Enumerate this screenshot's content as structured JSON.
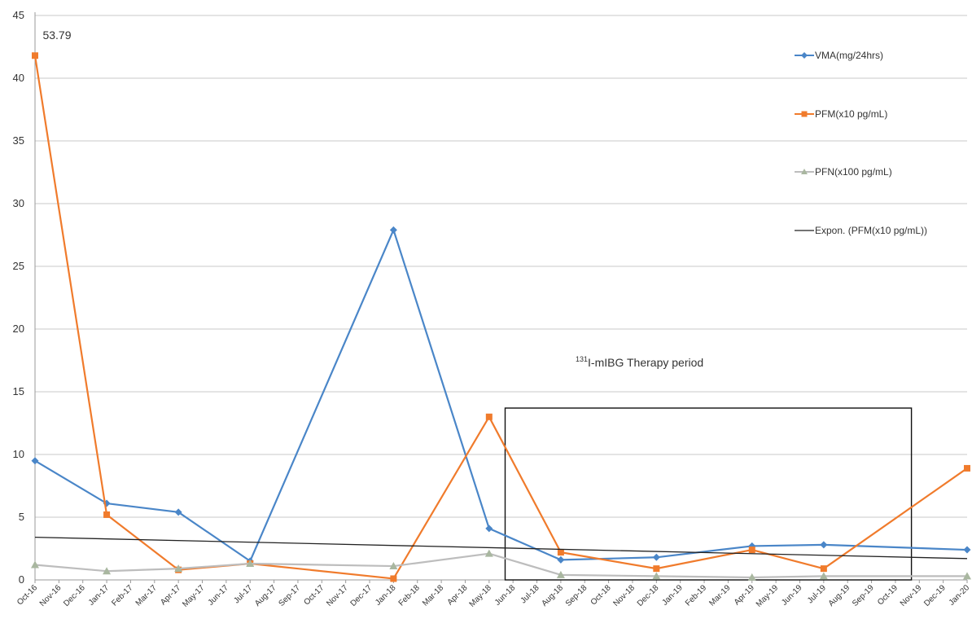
{
  "chart_data": {
    "type": "line",
    "categories": [
      "Oct-16",
      "Nov-16",
      "Dec-16",
      "Jan-17",
      "Feb-17",
      "Mar-17",
      "Apr-17",
      "May-17",
      "Jun-17",
      "Jul-17",
      "Aug-17",
      "Sep-17",
      "Oct-17",
      "Nov-17",
      "Dec-17",
      "Jan-18",
      "Feb-18",
      "Mar-18",
      "Apr-18",
      "May-18",
      "Jun-18",
      "Jul-18",
      "Aug-18",
      "Sep-18",
      "Oct-18",
      "Nov-18",
      "Dec-18",
      "Jan-19",
      "Feb-19",
      "Mar-19",
      "Apr-19",
      "May-19",
      "Jun-19",
      "Jul-19",
      "Aug-19",
      "Sep-19",
      "Oct-19",
      "Nov-19",
      "Dec-19",
      "Jan-20"
    ],
    "ylim": [
      0,
      45
    ],
    "yticks": [
      "0",
      "5",
      "10",
      "15",
      "20",
      "25",
      "30",
      "35",
      "40",
      "45"
    ],
    "grid": true,
    "legend_position": "right",
    "series": [
      {
        "name": "VMA(mg/24hrs)",
        "color": "#4a86c8",
        "marker": "diamond",
        "points": [
          {
            "x": "Oct-16",
            "y": 9.5
          },
          {
            "x": "Jan-17",
            "y": 6.1
          },
          {
            "x": "Apr-17",
            "y": 5.4
          },
          {
            "x": "Jul-17",
            "y": 1.5
          },
          {
            "x": "Jan-18",
            "y": 27.9
          },
          {
            "x": "May-18",
            "y": 4.1
          },
          {
            "x": "Aug-18",
            "y": 1.6
          },
          {
            "x": "Dec-18",
            "y": 1.8
          },
          {
            "x": "Apr-19",
            "y": 2.7
          },
          {
            "x": "Jul-19",
            "y": 2.8
          },
          {
            "x": "Jan-20",
            "y": 2.4
          }
        ]
      },
      {
        "name": "PFM(x10 pg/mL)",
        "color": "#f07b2c",
        "marker": "square",
        "points": [
          {
            "x": "Oct-16",
            "y": 41.8
          },
          {
            "x": "Jan-17",
            "y": 5.2
          },
          {
            "x": "Apr-17",
            "y": 0.8
          },
          {
            "x": "Jul-17",
            "y": 1.3
          },
          {
            "x": "Jan-18",
            "y": 0.1
          },
          {
            "x": "May-18",
            "y": 13.0
          },
          {
            "x": "Aug-18",
            "y": 2.2
          },
          {
            "x": "Dec-18",
            "y": 0.9
          },
          {
            "x": "Apr-19",
            "y": 2.4
          },
          {
            "x": "Jul-19",
            "y": 0.9
          },
          {
            "x": "Jan-20",
            "y": 8.9
          }
        ]
      },
      {
        "name": "PFN(x100 pg/mL)",
        "color": "#a9b7a0",
        "line_color": "#bdbdbd",
        "marker": "triangle",
        "points": [
          {
            "x": "Oct-16",
            "y": 1.2
          },
          {
            "x": "Jan-17",
            "y": 0.7
          },
          {
            "x": "Apr-17",
            "y": 0.9
          },
          {
            "x": "Jul-17",
            "y": 1.3
          },
          {
            "x": "Jan-18",
            "y": 1.1
          },
          {
            "x": "May-18",
            "y": 2.1
          },
          {
            "x": "Aug-18",
            "y": 0.4
          },
          {
            "x": "Dec-18",
            "y": 0.3
          },
          {
            "x": "Apr-19",
            "y": 0.2
          },
          {
            "x": "Jul-19",
            "y": 0.3
          },
          {
            "x": "Jan-20",
            "y": 0.3
          }
        ]
      },
      {
        "name": "Expon. (PFM(x10 pg/mL))",
        "color": "#222222",
        "marker": "none",
        "points": [
          {
            "x": "Oct-16",
            "y": 3.4
          },
          {
            "x": "Jan-20",
            "y": 1.7
          }
        ]
      }
    ],
    "annotations": {
      "max_label": "53.79",
      "therapy_sup": "131",
      "therapy_text": "I-mIBG Therapy period",
      "therapy_box_x": [
        "Jun-18",
        "Nov-19"
      ],
      "therapy_box_y": [
        0,
        13.7
      ]
    }
  }
}
